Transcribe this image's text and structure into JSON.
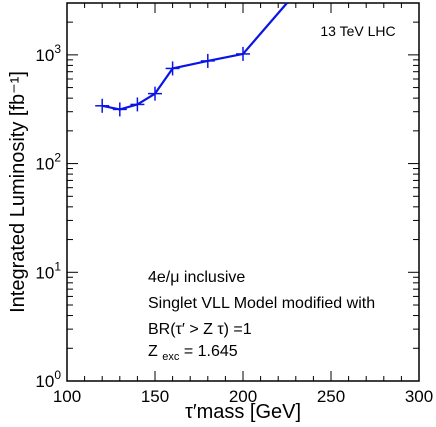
{
  "chart_data": {
    "type": "line",
    "title": "",
    "xlabel": "τ′mass  [GeV]",
    "ylabel": "Integrated Luminosity [fb⁻¹]",
    "xlim": [
      100,
      300
    ],
    "ylim": [
      1,
      3000
    ],
    "yscale": "log",
    "grid": false,
    "legend": "none",
    "x_ticks": [
      100,
      150,
      200,
      250,
      300
    ],
    "y_ticks": [
      {
        "value": 1,
        "base": "10",
        "exp": "0"
      },
      {
        "value": 10,
        "base": "10",
        "exp": "1"
      },
      {
        "value": 100,
        "base": "10",
        "exp": "2"
      },
      {
        "value": 1000,
        "base": "10",
        "exp": "3"
      }
    ],
    "series": [
      {
        "color": "#0a14e6",
        "x": [
          120,
          130,
          140,
          150,
          160,
          180,
          200,
          225
        ],
        "y": [
          340,
          315,
          350,
          440,
          750,
          880,
          1020,
          3000
        ]
      }
    ],
    "annotations": {
      "top_right": "13 TeV LHC",
      "line1": "4e/μ inclusive",
      "line2": "Singlet VLL Model modified with",
      "line3": "BR(τ′ > Z τ) =1",
      "line4_main": "Z",
      "line4_sub": "exc",
      "line4_rest": " = 1.645"
    }
  }
}
